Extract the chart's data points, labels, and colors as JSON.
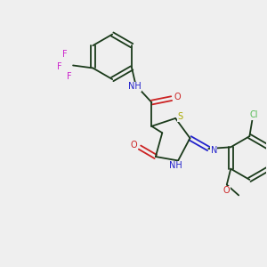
{
  "bg_color": "#efefef",
  "bond_color": "#1a3a1a",
  "colors": {
    "N": "#2222cc",
    "O": "#cc2222",
    "S": "#aaaa00",
    "Cl": "#55bb55",
    "F": "#cc22cc",
    "C": "#1a3a1a"
  },
  "font_size": 7.0
}
